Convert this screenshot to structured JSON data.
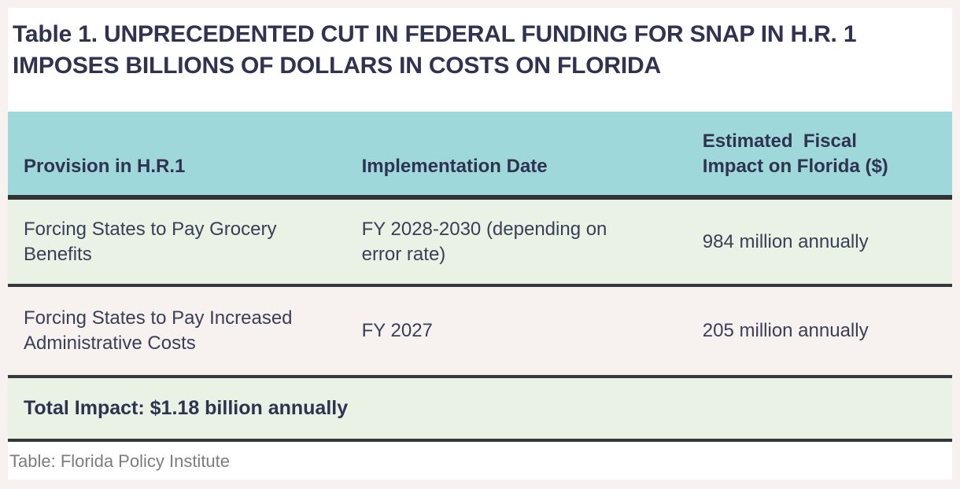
{
  "page": {
    "outer_background": "#f7f2ef",
    "content_background": "#ffffff"
  },
  "title": "Table 1. UNPRECEDENTED CUT IN FEDERAL FUNDING FOR SNAP IN H.R. 1 IMPOSES BILLIONS OF DOLLARS IN COSTS ON FLORIDA",
  "table": {
    "header": {
      "background_color": "#9fd8db",
      "columns": {
        "provision": "Provision in H.R.1",
        "implementation_date": "Implementation Date",
        "fiscal_impact": "Estimated  Fiscal\nImpact on Florida ($)"
      }
    },
    "rows": [
      {
        "provision": "Forcing States to Pay Grocery Benefits",
        "implementation_date": "FY 2028-2030 (depending on error rate)",
        "fiscal_impact": "984 million annually",
        "background_color": "#eaf2e5"
      },
      {
        "provision": "Forcing States to Pay Increased Administrative Costs",
        "implementation_date": "FY 2027",
        "fiscal_impact": "205 million annually",
        "background_color": "#f7f2ef"
      }
    ],
    "total_row": {
      "label": "Total Impact: $1.18 billion annually",
      "background_color": "#eaf2e5"
    },
    "divider_color": "#2e3436"
  },
  "footer": {
    "credit": "Table: Florida Policy Institute"
  },
  "colors": {
    "title_text": "#2f3350",
    "body_text": "#3a3f57",
    "footer_text": "#7d7d7d"
  }
}
